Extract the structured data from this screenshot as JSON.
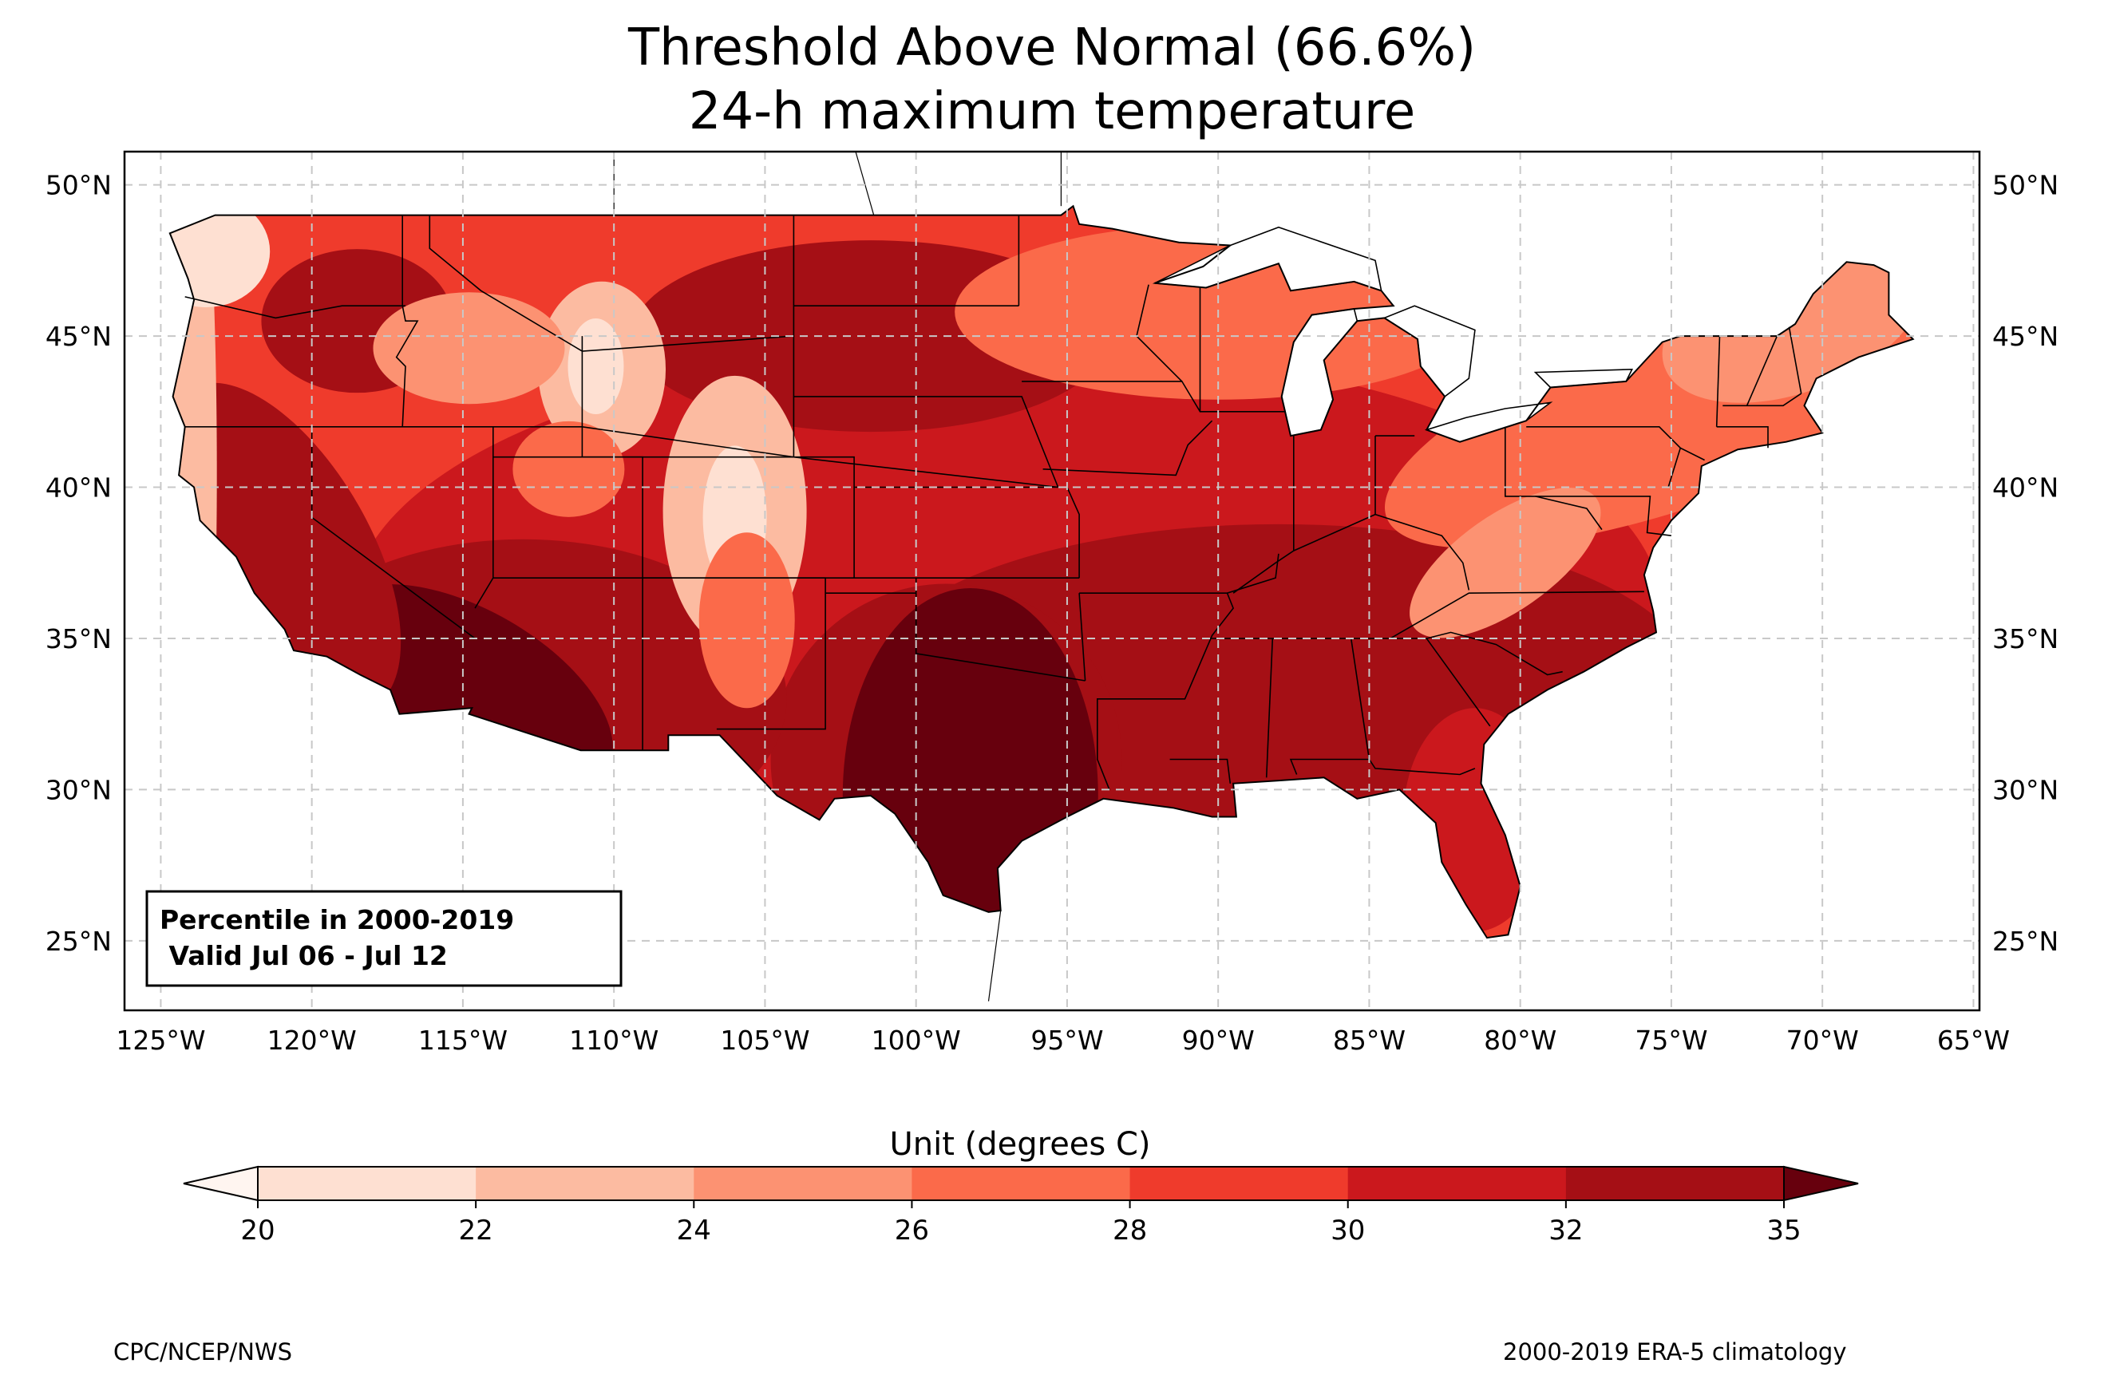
{
  "title": {
    "line1": "Threshold Above Normal (66.6%)",
    "line2": "24-h maximum temperature"
  },
  "map": {
    "region": "Contiguous United States",
    "lon_range": [
      -126.2,
      -64.8
    ],
    "lat_range": [
      22.7,
      51.1
    ],
    "longitude_ticks": [
      "125°W",
      "120°W",
      "115°W",
      "110°W",
      "105°W",
      "100°W",
      "95°W",
      "90°W",
      "85°W",
      "80°W",
      "75°W",
      "70°W",
      "65°W"
    ],
    "latitude_ticks": [
      "50°N",
      "45°N",
      "40°N",
      "35°N",
      "30°N",
      "25°N"
    ],
    "gridlines": "dashed",
    "inset": {
      "line1": "Percentile in 2000-2019",
      "line2": " Valid Jul 06 - Jul 12"
    }
  },
  "colorbar": {
    "label": "Unit (degrees C)",
    "ticks": [
      "20",
      "22",
      "24",
      "26",
      "28",
      "30",
      "32",
      "35"
    ],
    "under_color": "#fff5f0",
    "over_color": "#67000d",
    "bin_colors": [
      "#fee0d2",
      "#fcbba1",
      "#fc9272",
      "#fb6a4a",
      "#ef3b2c",
      "#cb181d",
      "#a50f15"
    ]
  },
  "footer": {
    "left": "CPC/NCEP/NWS",
    "right": "2000-2019 ERA-5 climatology"
  }
}
